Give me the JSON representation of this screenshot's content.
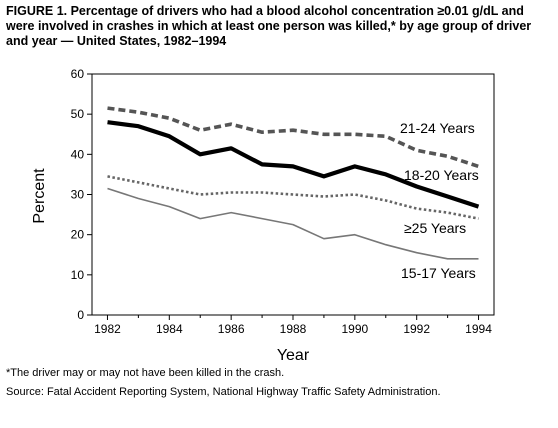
{
  "title": "FIGURE 1. Percentage of drivers who had a blood alcohol concentration ≥0.01 g/dL and were involved in crashes in which at least one person was killed,* by age group of driver and year — United States, 1982–1994",
  "footnote": "*The driver may or may not have been killed in the crash.",
  "source": "Source: Fatal Accident Reporting System, National Highway Traffic Safety Administration.",
  "chart_data": {
    "type": "line",
    "xlabel": "Year",
    "ylabel": "Percent",
    "xlim": [
      1981.5,
      1994.5
    ],
    "ylim": [
      0,
      60
    ],
    "xticks": [
      1982,
      1984,
      1986,
      1988,
      1990,
      1992,
      1994
    ],
    "yticks": [
      0,
      10,
      20,
      30,
      40,
      50,
      60
    ],
    "grid": false,
    "legend": "inline labels at line ends",
    "x": [
      1982,
      1983,
      1984,
      1985,
      1986,
      1987,
      1988,
      1989,
      1990,
      1991,
      1992,
      1993,
      1994
    ],
    "series": [
      {
        "name": "21-24 Years",
        "style": "dashed-heavy",
        "values": [
          51.5,
          50.5,
          49,
          46,
          47.5,
          45.5,
          46,
          45,
          45,
          44.5,
          41,
          39.5,
          37
        ]
      },
      {
        "name": "18-20 Years",
        "style": "solid-heavy",
        "values": [
          48,
          47,
          44.5,
          40,
          41.5,
          37.5,
          37,
          34.5,
          37,
          35,
          32,
          29.5,
          27
        ]
      },
      {
        "name": "≥25 Years",
        "style": "dotted",
        "values": [
          34.5,
          33,
          31.5,
          30,
          30.5,
          30.5,
          30,
          29.5,
          30,
          28.5,
          26.5,
          25.5,
          24
        ]
      },
      {
        "name": "15-17 Years",
        "style": "thin-solid",
        "values": [
          31.5,
          29,
          27,
          24,
          25.5,
          24,
          22.5,
          19,
          20,
          17.5,
          15.5,
          14,
          14
        ]
      }
    ]
  }
}
